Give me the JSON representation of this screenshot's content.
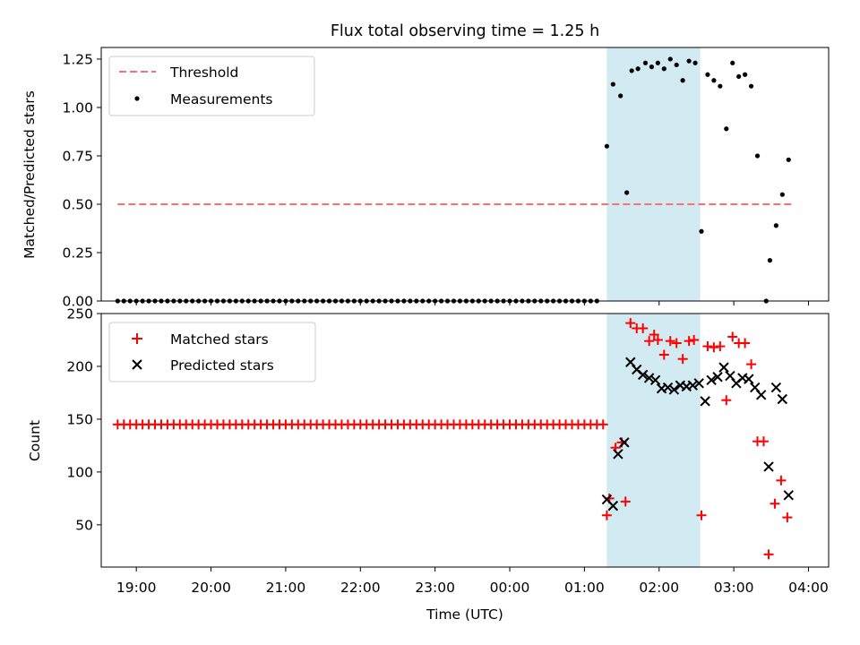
{
  "chart_data": [
    {
      "type": "scatter",
      "title": "Flux total observing time = 1.25 h",
      "xlabel": "",
      "ylabel": "Matched/Predicted stars",
      "ylim": [
        0,
        1.31
      ],
      "yticks": [
        "0.00",
        "0.25",
        "0.50",
        "0.75",
        "1.00",
        "1.25"
      ],
      "grid": false,
      "legend": "top-left",
      "shaded_interval": {
        "start": "01:18",
        "end": "02:33",
        "color": "#add8e6"
      },
      "threshold": {
        "name": "Threshold",
        "value": 0.5,
        "start": "18:45",
        "end": "03:48",
        "color": "#ff6f6f"
      },
      "series": [
        {
          "name": "Measurements",
          "color": "#000000",
          "marker": "dot",
          "zeros_from": "18:45",
          "zeros_to": "01:12",
          "zeros_step_minutes": 5,
          "points": [
            [
              "01:18",
              0.8
            ],
            [
              "01:23",
              1.12
            ],
            [
              "01:29",
              1.06
            ],
            [
              "01:34",
              0.56
            ],
            [
              "01:38",
              1.19
            ],
            [
              "01:43",
              1.2
            ],
            [
              "01:49",
              1.23
            ],
            [
              "01:54",
              1.21
            ],
            [
              "01:59",
              1.23
            ],
            [
              "02:04",
              1.2
            ],
            [
              "02:09",
              1.25
            ],
            [
              "02:14",
              1.22
            ],
            [
              "02:19",
              1.14
            ],
            [
              "02:24",
              1.24
            ],
            [
              "02:29",
              1.23
            ],
            [
              "02:34",
              0.36
            ],
            [
              "02:39",
              1.17
            ],
            [
              "02:44",
              1.14
            ],
            [
              "02:49",
              1.11
            ],
            [
              "02:54",
              0.89
            ],
            [
              "02:59",
              1.23
            ],
            [
              "03:04",
              1.16
            ],
            [
              "03:09",
              1.17
            ],
            [
              "03:14",
              1.11
            ],
            [
              "03:19",
              0.75
            ],
            [
              "03:26",
              0.0
            ],
            [
              "03:29",
              0.21
            ],
            [
              "03:34",
              0.39
            ],
            [
              "03:39",
              0.55
            ],
            [
              "03:44",
              0.73
            ]
          ]
        }
      ]
    },
    {
      "type": "scatter",
      "title": "",
      "xlabel": "Time (UTC)",
      "ylabel": "Count",
      "ylim": [
        10,
        250
      ],
      "yticks": [
        "50",
        "100",
        "150",
        "200",
        "250"
      ],
      "xticks": [
        "19:00",
        "20:00",
        "21:00",
        "22:00",
        "23:00",
        "00:00",
        "01:00",
        "02:00",
        "03:00",
        "04:00"
      ],
      "grid": false,
      "legend": "top-left",
      "shaded_interval": {
        "start": "01:18",
        "end": "02:33",
        "color": "#add8e6"
      },
      "series": [
        {
          "name": "Matched stars",
          "color": "#ff0000",
          "marker": "plus",
          "constant_value": 145,
          "constant_from": "18:45",
          "constant_to": "01:15",
          "constant_step_minutes": 5,
          "points": [
            [
              "01:18",
              59
            ],
            [
              "01:20",
              75
            ],
            [
              "01:25",
              123
            ],
            [
              "01:30",
              128
            ],
            [
              "01:33",
              72
            ],
            [
              "01:37",
              241
            ],
            [
              "01:42",
              236
            ],
            [
              "01:47",
              236
            ],
            [
              "01:52",
              224
            ],
            [
              "01:56",
              230
            ],
            [
              "01:59",
              225
            ],
            [
              "02:04",
              211
            ],
            [
              "02:09",
              224
            ],
            [
              "02:14",
              222
            ],
            [
              "02:19",
              207
            ],
            [
              "02:24",
              224
            ],
            [
              "02:28",
              225
            ],
            [
              "02:34",
              59
            ],
            [
              "02:39",
              219
            ],
            [
              "02:44",
              218
            ],
            [
              "02:49",
              219
            ],
            [
              "02:54",
              168
            ],
            [
              "02:59",
              228
            ],
            [
              "03:04",
              222
            ],
            [
              "03:09",
              222
            ],
            [
              "03:14",
              202
            ],
            [
              "03:19",
              129
            ],
            [
              "03:24",
              129
            ],
            [
              "03:28",
              22
            ],
            [
              "03:33",
              70
            ],
            [
              "03:38",
              92
            ],
            [
              "03:43",
              57
            ]
          ]
        },
        {
          "name": "Predicted stars",
          "color": "#000000",
          "marker": "cross",
          "points": [
            [
              "01:18",
              74
            ],
            [
              "01:23",
              68
            ],
            [
              "01:27",
              117
            ],
            [
              "01:32",
              128
            ],
            [
              "01:37",
              204
            ],
            [
              "01:42",
              197
            ],
            [
              "01:47",
              192
            ],
            [
              "01:52",
              189
            ],
            [
              "01:57",
              187
            ],
            [
              "02:02",
              179
            ],
            [
              "02:07",
              180
            ],
            [
              "02:12",
              178
            ],
            [
              "02:17",
              182
            ],
            [
              "02:22",
              181
            ],
            [
              "02:27",
              182
            ],
            [
              "02:32",
              184
            ],
            [
              "02:37",
              167
            ],
            [
              "02:42",
              187
            ],
            [
              "02:47",
              190
            ],
            [
              "02:52",
              199
            ],
            [
              "02:57",
              191
            ],
            [
              "03:02",
              184
            ],
            [
              "03:07",
              189
            ],
            [
              "03:12",
              188
            ],
            [
              "03:17",
              180
            ],
            [
              "03:22",
              173
            ],
            [
              "03:28",
              105
            ],
            [
              "03:34",
              180
            ],
            [
              "03:39",
              169
            ],
            [
              "03:44",
              78
            ]
          ]
        }
      ]
    }
  ]
}
